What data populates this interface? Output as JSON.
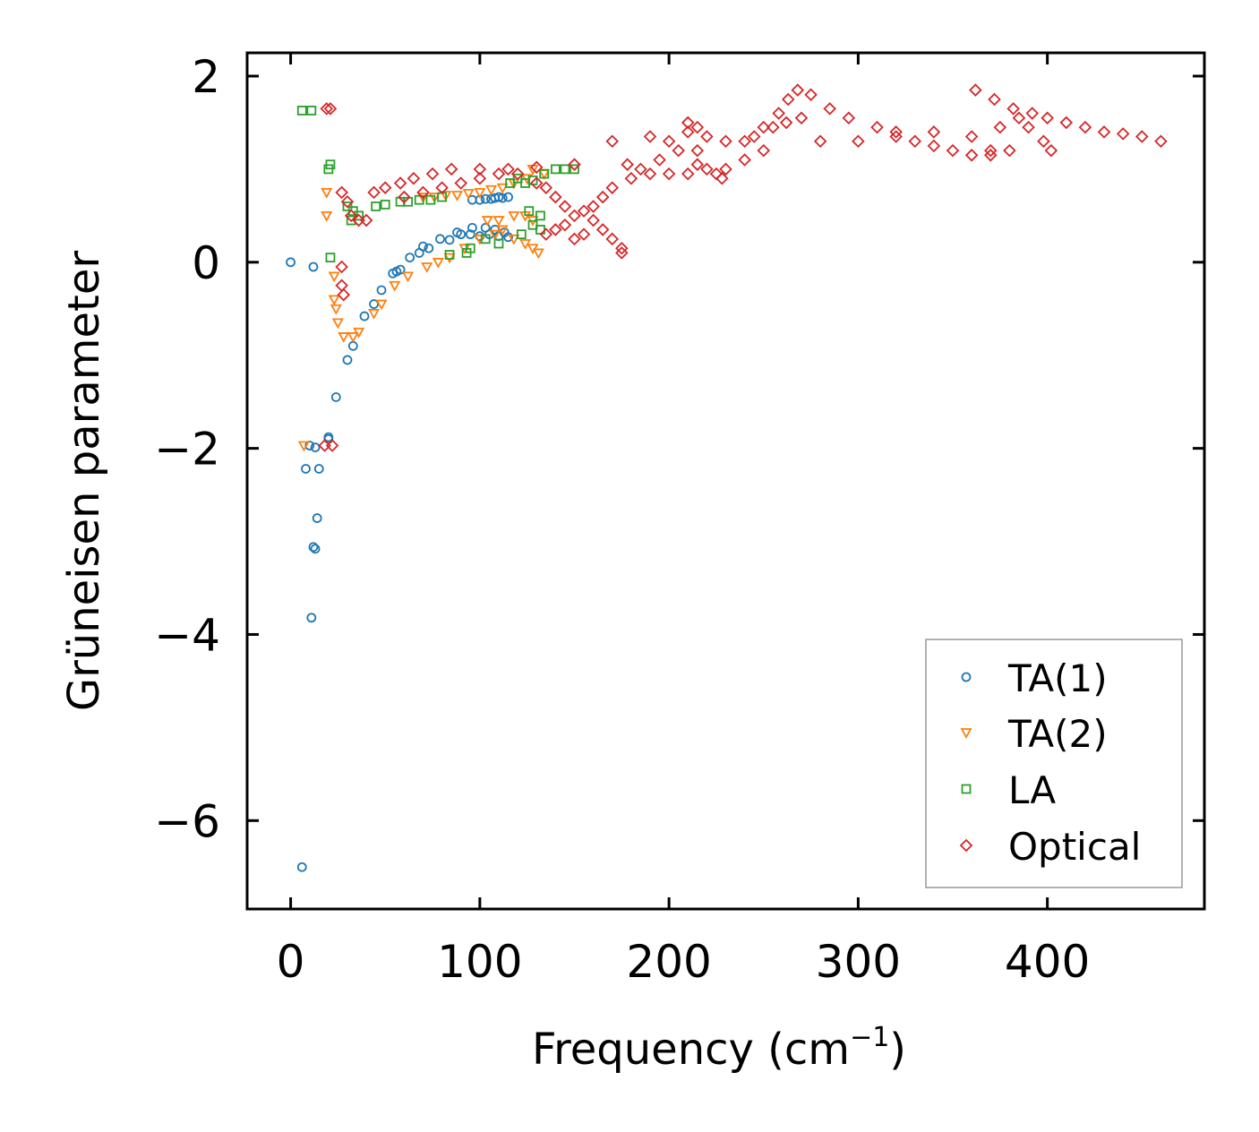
{
  "chart_data": {
    "type": "scatter",
    "title": "",
    "xlabel": "Frequency (cm",
    "xlabel_sup": "−1",
    "xlabel_tail": ")",
    "ylabel": "Grüneisen parameter",
    "xlim": [
      -23,
      483
    ],
    "ylim": [
      -6.95,
      2.25
    ],
    "x_ticks": [
      0,
      100,
      200,
      300,
      400
    ],
    "x_tick_labels": [
      "0",
      "100",
      "200",
      "300",
      "400"
    ],
    "y_ticks": [
      2,
      0,
      -2,
      -4,
      -6
    ],
    "y_tick_labels": [
      "2",
      "0",
      "−2",
      "−4",
      "−6"
    ],
    "grid": false,
    "legend_position": "lower right",
    "series": [
      {
        "name": "TA(1)",
        "marker": "circle",
        "color": "#1f77b4",
        "points": [
          [
            6,
            -6.5
          ],
          [
            8,
            -2.22
          ],
          [
            10,
            -1.97
          ],
          [
            11,
            -3.82
          ],
          [
            12,
            -3.06
          ],
          [
            13,
            -3.08
          ],
          [
            13,
            -1.99
          ],
          [
            14,
            -2.75
          ],
          [
            15,
            -2.22
          ],
          [
            20,
            -1.9
          ],
          [
            20,
            -1.88
          ],
          [
            24,
            -1.45
          ],
          [
            30,
            -1.05
          ],
          [
            33,
            -0.9
          ],
          [
            39,
            -0.58
          ],
          [
            44,
            -0.45
          ],
          [
            48,
            -0.3
          ],
          [
            54,
            -0.12
          ],
          [
            56,
            -0.1
          ],
          [
            58,
            -0.08
          ],
          [
            63,
            0.05
          ],
          [
            68,
            0.1
          ],
          [
            70,
            0.17
          ],
          [
            73,
            0.15
          ],
          [
            79,
            0.25
          ],
          [
            84,
            0.24
          ],
          [
            88,
            0.32
          ],
          [
            90,
            0.3
          ],
          [
            95,
            0.3
          ],
          [
            96,
            0.37
          ],
          [
            100,
            0.28
          ],
          [
            103,
            0.37
          ],
          [
            105,
            0.3
          ],
          [
            108,
            0.35
          ],
          [
            110,
            0.28
          ],
          [
            113,
            0.32
          ],
          [
            115,
            0.27
          ],
          [
            96,
            0.67
          ],
          [
            100,
            0.67
          ],
          [
            103,
            0.68
          ],
          [
            106,
            0.68
          ],
          [
            108,
            0.69
          ],
          [
            110,
            0.7
          ],
          [
            112,
            0.69
          ],
          [
            115,
            0.7
          ],
          [
            0,
            0.0
          ],
          [
            12,
            -0.05
          ]
        ]
      },
      {
        "name": "TA(2)",
        "marker": "triangle-down",
        "color": "#ff7f0e",
        "points": [
          [
            7,
            -1.97
          ],
          [
            19,
            0.75
          ],
          [
            19,
            0.5
          ],
          [
            23,
            -0.15
          ],
          [
            23,
            -0.4
          ],
          [
            24,
            -0.5
          ],
          [
            25,
            -0.65
          ],
          [
            28,
            -0.8
          ],
          [
            33,
            -0.8
          ],
          [
            36,
            -0.75
          ],
          [
            44,
            -0.55
          ],
          [
            48,
            -0.45
          ],
          [
            55,
            -0.25
          ],
          [
            62,
            -0.15
          ],
          [
            72,
            -0.05
          ],
          [
            78,
            0.0
          ],
          [
            84,
            0.05
          ],
          [
            92,
            0.15
          ],
          [
            100,
            0.25
          ],
          [
            108,
            0.3
          ],
          [
            112,
            0.35
          ],
          [
            118,
            0.25
          ],
          [
            124,
            0.2
          ],
          [
            128,
            0.15
          ],
          [
            131,
            0.1
          ],
          [
            104,
            0.45
          ],
          [
            110,
            0.45
          ],
          [
            118,
            0.5
          ],
          [
            124,
            0.5
          ],
          [
            128,
            0.45
          ],
          [
            82,
            0.72
          ],
          [
            88,
            0.72
          ],
          [
            94,
            0.74
          ],
          [
            100,
            0.75
          ],
          [
            106,
            0.78
          ],
          [
            112,
            0.8
          ],
          [
            118,
            0.85
          ],
          [
            125,
            0.9
          ],
          [
            128,
            1.0
          ],
          [
            134,
            0.95
          ],
          [
            76,
            0.7
          ],
          [
            70,
            0.7
          ]
        ]
      },
      {
        "name": "LA",
        "marker": "square",
        "color": "#2ca02c",
        "points": [
          [
            6,
            1.63
          ],
          [
            11,
            1.63
          ],
          [
            20,
            1.0
          ],
          [
            21,
            1.05
          ],
          [
            21,
            0.05
          ],
          [
            30,
            0.6
          ],
          [
            32,
            0.45
          ],
          [
            33,
            0.55
          ],
          [
            36,
            0.5
          ],
          [
            45,
            0.6
          ],
          [
            50,
            0.62
          ],
          [
            58,
            0.65
          ],
          [
            62,
            0.65
          ],
          [
            68,
            0.67
          ],
          [
            74,
            0.67
          ],
          [
            80,
            0.7
          ],
          [
            84,
            0.08
          ],
          [
            93,
            0.1
          ],
          [
            95,
            0.15
          ],
          [
            103,
            0.25
          ],
          [
            110,
            0.2
          ],
          [
            122,
            0.3
          ],
          [
            128,
            0.4
          ],
          [
            132,
            0.35
          ],
          [
            126,
            0.55
          ],
          [
            132,
            0.5
          ],
          [
            124,
            0.85
          ],
          [
            128,
            0.88
          ],
          [
            134,
            0.95
          ],
          [
            140,
            1.0
          ],
          [
            145,
            1.0
          ],
          [
            150,
            1.0
          ],
          [
            120,
            0.9
          ],
          [
            116,
            0.85
          ]
        ]
      },
      {
        "name": "Optical",
        "marker": "diamond",
        "color": "#d62728",
        "points": [
          [
            19,
            1.65
          ],
          [
            21,
            1.65
          ],
          [
            18,
            -1.97
          ],
          [
            22,
            -1.97
          ],
          [
            27,
            -0.05
          ],
          [
            27,
            -0.25
          ],
          [
            28,
            -0.35
          ],
          [
            27,
            0.75
          ],
          [
            30,
            0.65
          ],
          [
            32,
            0.5
          ],
          [
            36,
            0.45
          ],
          [
            40,
            0.45
          ],
          [
            44,
            0.75
          ],
          [
            50,
            0.8
          ],
          [
            58,
            0.85
          ],
          [
            65,
            0.9
          ],
          [
            75,
            0.95
          ],
          [
            85,
            1.0
          ],
          [
            100,
            1.0
          ],
          [
            115,
            1.0
          ],
          [
            130,
            1.02
          ],
          [
            150,
            1.05
          ],
          [
            170,
            1.3
          ],
          [
            190,
            1.35
          ],
          [
            200,
            1.3
          ],
          [
            210,
            1.4
          ],
          [
            215,
            1.2
          ],
          [
            220,
            1.35
          ],
          [
            230,
            1.3
          ],
          [
            240,
            1.3
          ],
          [
            250,
            1.45
          ],
          [
            258,
            1.6
          ],
          [
            263,
            1.75
          ],
          [
            268,
            1.85
          ],
          [
            275,
            1.8
          ],
          [
            285,
            1.65
          ],
          [
            295,
            1.55
          ],
          [
            310,
            1.45
          ],
          [
            320,
            1.4
          ],
          [
            330,
            1.3
          ],
          [
            340,
            1.25
          ],
          [
            350,
            1.2
          ],
          [
            360,
            1.15
          ],
          [
            370,
            1.15
          ],
          [
            362,
            1.85
          ],
          [
            372,
            1.75
          ],
          [
            382,
            1.65
          ],
          [
            392,
            1.6
          ],
          [
            400,
            1.55
          ],
          [
            410,
            1.5
          ],
          [
            420,
            1.45
          ],
          [
            430,
            1.4
          ],
          [
            440,
            1.38
          ],
          [
            450,
            1.35
          ],
          [
            460,
            1.3
          ],
          [
            280,
            1.3
          ],
          [
            300,
            1.3
          ],
          [
            320,
            1.35
          ],
          [
            340,
            1.4
          ],
          [
            360,
            1.35
          ],
          [
            375,
            1.45
          ],
          [
            385,
            1.55
          ],
          [
            390,
            1.45
          ],
          [
            398,
            1.3
          ],
          [
            402,
            1.2
          ],
          [
            380,
            1.2
          ],
          [
            370,
            1.2
          ],
          [
            250,
            1.2
          ],
          [
            240,
            1.1
          ],
          [
            230,
            1.0
          ],
          [
            220,
            1.0
          ],
          [
            210,
            0.95
          ],
          [
            200,
            0.95
          ],
          [
            190,
            0.95
          ],
          [
            180,
            0.9
          ],
          [
            170,
            0.8
          ],
          [
            165,
            0.7
          ],
          [
            160,
            0.6
          ],
          [
            155,
            0.55
          ],
          [
            150,
            0.5
          ],
          [
            145,
            0.4
          ],
          [
            140,
            0.35
          ],
          [
            135,
            0.3
          ],
          [
            160,
            0.45
          ],
          [
            165,
            0.35
          ],
          [
            170,
            0.25
          ],
          [
            175,
            0.15
          ],
          [
            175,
            0.1
          ],
          [
            155,
            0.3
          ],
          [
            150,
            0.25
          ],
          [
            145,
            0.6
          ],
          [
            140,
            0.7
          ],
          [
            135,
            0.8
          ],
          [
            130,
            0.85
          ],
          [
            120,
            0.95
          ],
          [
            110,
            0.95
          ],
          [
            100,
            0.9
          ],
          [
            90,
            0.85
          ],
          [
            80,
            0.8
          ],
          [
            70,
            0.75
          ],
          [
            60,
            0.7
          ],
          [
            245,
            1.35
          ],
          [
            255,
            1.45
          ],
          [
            262,
            1.5
          ],
          [
            270,
            1.55
          ],
          [
            205,
            1.2
          ],
          [
            195,
            1.1
          ],
          [
            185,
            1.0
          ],
          [
            178,
            1.05
          ],
          [
            215,
            1.05
          ],
          [
            225,
            0.95
          ],
          [
            228,
            0.9
          ],
          [
            210,
            1.5
          ],
          [
            215,
            1.45
          ]
        ]
      }
    ],
    "legend": [
      "TA(1)",
      "TA(2)",
      "LA",
      "Optical"
    ]
  }
}
